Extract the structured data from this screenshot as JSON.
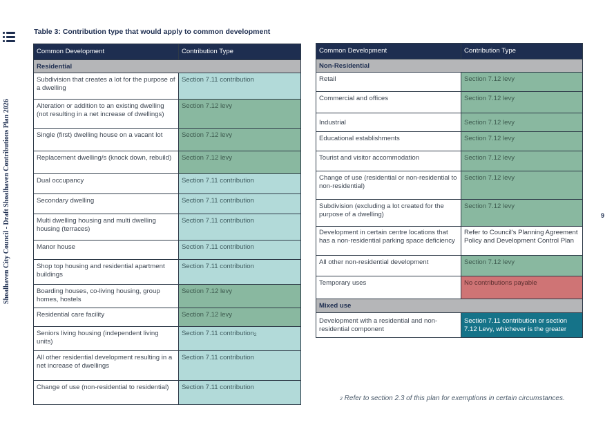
{
  "side_label": {
    "org": "Shoalhaven City Council",
    "separator": " - ",
    "doc": "Draft Shoalhaven Contributions Plan 2026"
  },
  "caption": "Table 3: Contribution type that would apply to common development",
  "page_number": "9",
  "footnote": {
    "mark": "2",
    "text": " Refer to section 2.3 of this plan for exemptions in certain circumstances."
  },
  "left_table": {
    "headers": [
      "Common Development",
      "Contribution Type"
    ],
    "section": "Residential",
    "rows": [
      {
        "dev": "Subdivision that creates a lot for the purpose of a dwelling",
        "type": "Section 7.11 contribution",
        "fn": ""
      },
      {
        "dev": "Alteration or addition to an existing dwelling (not resulting in a net increase of dwellings)",
        "type": "Section 7.12 levy",
        "fn": ""
      },
      {
        "dev": "Single (first) dwelling house on a vacant lot",
        "type": "Section 7.12 levy",
        "fn": ""
      },
      {
        "dev": "Replacement dwelling/s (knock down, rebuild)",
        "type": "Section 7.12 levy",
        "fn": ""
      },
      {
        "dev": "Dual occupancy",
        "type": "Section 7.11 contribution",
        "fn": ""
      },
      {
        "dev": "Secondary dwelling",
        "type": "Section 7.11 contribution",
        "fn": ""
      },
      {
        "dev": "Multi dwelling housing and multi dwelling housing (terraces)",
        "type": "Section 7.11 contribution",
        "fn": ""
      },
      {
        "dev": "Manor house",
        "type": "Section 7.11 contribution",
        "fn": ""
      },
      {
        "dev": "Shop top housing and residential apartment buildings",
        "type": "Section 7.11 contribution",
        "fn": ""
      },
      {
        "dev": "Boarding houses, co-living housing, group homes, hostels",
        "type": "Section 7.12 levy",
        "fn": ""
      },
      {
        "dev": "Residential care facility",
        "type": "Section 7.12 levy",
        "fn": ""
      },
      {
        "dev": "Seniors living housing (independent living units)",
        "type": "Section 7.11 contribution",
        "fn": "2"
      },
      {
        "dev": "All other residential development resulting in a net increase of dwellings",
        "type": "Section 7.11 contribution",
        "fn": ""
      },
      {
        "dev": "Change of use (non-residential to residential)",
        "type": "Section 7.11 contribution",
        "fn": ""
      }
    ]
  },
  "right_table": {
    "headers": [
      "Common Development",
      "Contribution Type"
    ],
    "section": "Non-Residential",
    "rows": [
      {
        "dev": "Retail",
        "type": "Section 7.12 levy"
      },
      {
        "dev": "Commercial and offices",
        "type": "Section 7.12 levy"
      },
      {
        "dev": "Industrial",
        "type": "Section 7.12 levy"
      },
      {
        "dev": "Educational establishments",
        "type": "Section 7.12 levy"
      },
      {
        "dev": "Tourist and visitor accommodation",
        "type": "Section 7.12 levy"
      },
      {
        "dev": "Change of use (residential or non-residential to non-residential)",
        "type": "Section 7.12 levy"
      },
      {
        "dev": "Subdivision (excluding a lot created for the purpose of a dwelling)",
        "type": "Section 7.12 levy"
      },
      {
        "dev": "Development in certain centre locations that has a non-residential parking space deficiency",
        "type": "Refer to Council's Planning Agreement Policy and Development Control Plan"
      },
      {
        "dev": "All other non-residential development",
        "type": "Section 7.12 levy"
      },
      {
        "dev": "Temporary uses",
        "type": "No contributions payable"
      }
    ],
    "mixed_section": "Mixed use",
    "mixed_rows": [
      {
        "dev": "Development with a residential and non-residential component",
        "type": "Section 7.11 contribution or section 7.12 Levy, whichever is the greater"
      }
    ]
  },
  "colors": {
    "navy": "#1e2e50",
    "levy": "#89b8a0",
    "contribution": "#b2dad9",
    "none": "#cf7475",
    "mixed": "#157389",
    "section_grey": "#b5b6b8"
  }
}
